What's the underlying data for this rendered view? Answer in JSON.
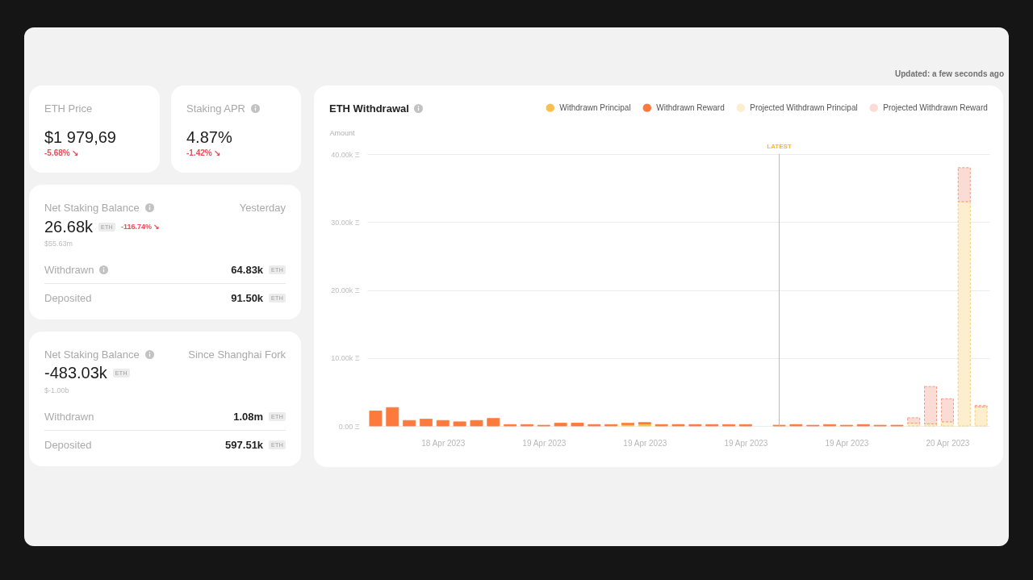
{
  "chart_data": [
    {
      "type": "other",
      "title": "ETH Price",
      "annotations": [
        "$1 979,69",
        "-5.68% ↘"
      ]
    },
    {
      "type": "other",
      "title": "Staking APR",
      "annotations": [
        "4.87%",
        "-1.42% ↘"
      ]
    },
    {
      "type": "bar",
      "title": "ETH Withdrawal",
      "ylabel": "Amount",
      "stacked": true,
      "x": [
        "2023-04-18T16:00",
        "2023-04-18T17:00",
        "2023-04-18T18:00",
        "2023-04-18T19:00",
        "2023-04-18T20:00",
        "2023-04-18T21:00",
        "2023-04-18T22:00",
        "2023-04-18T23:00",
        "2023-04-19T00:00",
        "2023-04-19T01:00",
        "2023-04-19T02:00",
        "2023-04-19T03:00",
        "2023-04-19T04:00",
        "2023-04-19T05:00",
        "2023-04-19T06:00",
        "2023-04-19T07:00",
        "2023-04-19T08:00",
        "2023-04-19T09:00",
        "2023-04-19T10:00",
        "2023-04-19T11:00",
        "2023-04-19T12:00",
        "2023-04-19T13:00",
        "2023-04-19T14:00",
        "2023-04-19T16:00",
        "2023-04-19T17:00",
        "2023-04-19T18:00",
        "2023-04-19T19:00",
        "2023-04-19T20:00",
        "2023-04-19T21:00",
        "2023-04-19T22:00",
        "2023-04-19T23:00",
        "2023-04-20T00:00",
        "2023-04-20T01:00",
        "2023-04-20T02:00",
        "2023-04-20T03:00",
        "2023-04-20T04:00"
      ],
      "series": [
        {
          "name": "Withdrawn Principal",
          "color": "#f9c04f",
          "values": [
            null,
            null,
            null,
            null,
            null,
            null,
            null,
            null,
            null,
            null,
            null,
            null,
            null,
            null,
            null,
            200,
            300,
            null,
            null,
            null,
            null,
            null,
            null,
            null,
            null,
            null,
            null,
            null,
            null,
            null,
            null,
            null,
            null,
            null,
            null,
            null
          ]
        },
        {
          "name": "Withdrawn Reward",
          "color": "#fd7a3d",
          "values": [
            2200,
            2700,
            800,
            1000,
            800,
            600,
            800,
            1100,
            200,
            200,
            100,
            400,
            400,
            200,
            200,
            200,
            200,
            200,
            200,
            200,
            200,
            200,
            200,
            100,
            200,
            100,
            200,
            100,
            200,
            100,
            100,
            null,
            null,
            null,
            null,
            null
          ]
        },
        {
          "name": "Projected Withdrawn Principal",
          "color": "#fdefcd",
          "line_style": "dashed",
          "values": [
            null,
            null,
            null,
            null,
            null,
            null,
            null,
            null,
            null,
            null,
            null,
            null,
            null,
            null,
            null,
            null,
            null,
            null,
            null,
            null,
            null,
            null,
            null,
            null,
            null,
            null,
            null,
            null,
            null,
            null,
            null,
            400,
            300,
            600,
            33000,
            2800
          ]
        },
        {
          "name": "Projected Withdrawn Reward",
          "color": "#fbdcd5",
          "line_style": "dashed",
          "values": [
            null,
            null,
            null,
            null,
            null,
            null,
            null,
            null,
            null,
            null,
            null,
            null,
            null,
            null,
            null,
            null,
            null,
            null,
            null,
            null,
            null,
            null,
            null,
            null,
            null,
            null,
            null,
            null,
            null,
            null,
            null,
            800,
            5500,
            3400,
            5000,
            200
          ]
        }
      ],
      "xlim": [
        "2023-04-18T15:30",
        "2023-04-20T04:30"
      ],
      "ylim": [
        0,
        40000
      ],
      "xticks": [
        {
          "value": "2023-04-18T20:00",
          "label": "18 Apr 2023"
        },
        {
          "value": "2023-04-19T02:00",
          "label": "19 Apr 2023"
        },
        {
          "value": "2023-04-19T08:00",
          "label": "19 Apr 2023"
        },
        {
          "value": "2023-04-19T14:00",
          "label": "19 Apr 2023"
        },
        {
          "value": "2023-04-19T20:00",
          "label": "19 Apr 2023"
        },
        {
          "value": "2023-04-20T02:00",
          "label": "20 Apr 2023"
        }
      ],
      "yticks": [
        {
          "value": 0,
          "label": "0.00 Ξ"
        },
        {
          "value": 10000,
          "label": "10.00k Ξ"
        },
        {
          "value": 20000,
          "label": "20.00k Ξ"
        },
        {
          "value": 30000,
          "label": "30.00k Ξ"
        },
        {
          "value": 40000,
          "label": "40.00k Ξ"
        }
      ],
      "grid": "y",
      "legend": "top right",
      "ref_lines": [
        {
          "axis": "x",
          "value": "2023-04-19T16:00",
          "label": "LATEST",
          "color": "#f5b930"
        }
      ],
      "annotations": [
        "Updated: a few seconds ago"
      ]
    },
    {
      "type": "other",
      "title": "Net Staking Balance",
      "subtitle": "Yesterday",
      "annotations": [
        "26.68k",
        "ETH",
        "-116.74% ↘",
        "$55.63m",
        "Withdrawn",
        "64.83k",
        "ETH",
        "Deposited",
        "91.50k",
        "ETH"
      ]
    },
    {
      "type": "other",
      "title": "Net Staking Balance",
      "subtitle": "Since Shanghai Fork",
      "annotations": [
        "-483.03k",
        "ETH",
        "$-1.00b",
        "Withdrawn",
        "1.08m",
        "ETH",
        "Deposited",
        "597.51k",
        "ETH"
      ]
    }
  ]
}
